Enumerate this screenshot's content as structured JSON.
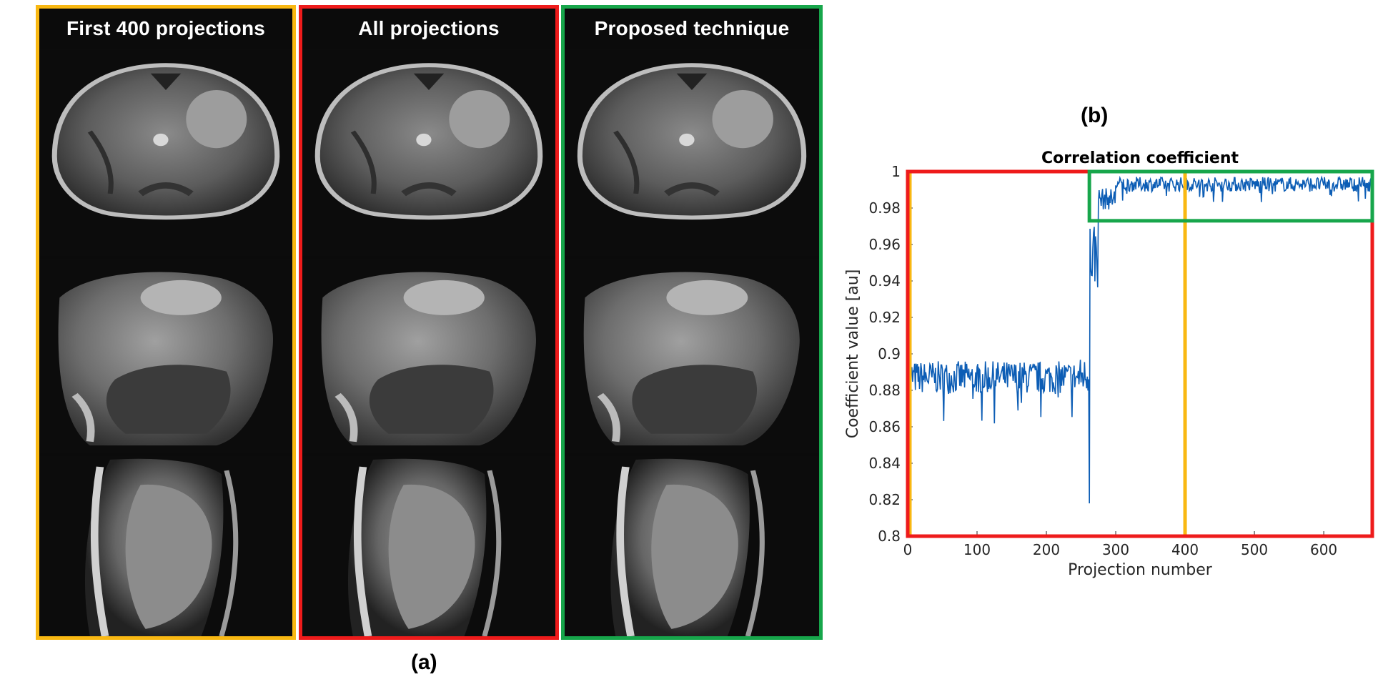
{
  "panel_a": {
    "label": "(a)",
    "columns": [
      {
        "title": "First 400 projections",
        "border_color": "#F9B812"
      },
      {
        "title": "All projections",
        "border_color": "#EE1B1B"
      },
      {
        "title": "Proposed technique",
        "border_color": "#17A64B"
      }
    ]
  },
  "panel_b": {
    "label": "(b)",
    "highlight_colors": {
      "all": "#EE1B1B",
      "first400": "#F9B812",
      "proposed": "#17A64B"
    },
    "line_color": "#0C5DB5"
  },
  "chart_data": {
    "type": "line",
    "title": "Correlation coefficient",
    "xlabel": "Projection number",
    "ylabel": "Coefficient value [au]",
    "xlim": [
      0,
      670
    ],
    "ylim": [
      0.8,
      1.0
    ],
    "xticks": [
      "0",
      "100",
      "200",
      "300",
      "400",
      "500",
      "600"
    ],
    "yticks": [
      "0.8",
      "0.82",
      "0.84",
      "0.86",
      "0.88",
      "0.9",
      "0.92",
      "0.94",
      "0.96",
      "0.98",
      "1"
    ],
    "grid": false,
    "series": [
      {
        "segments": [
          {
            "x_start": 0,
            "x_end": 248,
            "mean": 0.887,
            "noise": 0.009
          },
          {
            "x_start": 248,
            "x_end": 262,
            "mean": 0.888,
            "noise": 0.01
          },
          {
            "x_start": 262,
            "x_end": 263,
            "mean": 0.818,
            "noise": 0
          },
          {
            "x_start": 263,
            "x_end": 275,
            "mean": 0.955,
            "noise": 0.02
          },
          {
            "x_start": 275,
            "x_end": 300,
            "mean": 0.985,
            "noise": 0.006
          },
          {
            "x_start": 300,
            "x_end": 670,
            "mean": 0.993,
            "noise": 0.004
          }
        ]
      }
    ],
    "highlight_boxes": [
      {
        "name": "all",
        "x": [
          0,
          670
        ],
        "y": [
          0.8,
          1.0
        ]
      },
      {
        "name": "proposed",
        "x": [
          262,
          670
        ],
        "y": [
          0.973,
          1.0
        ]
      }
    ],
    "vertical_lines": [
      {
        "x": 0
      },
      {
        "x": 400
      }
    ]
  }
}
